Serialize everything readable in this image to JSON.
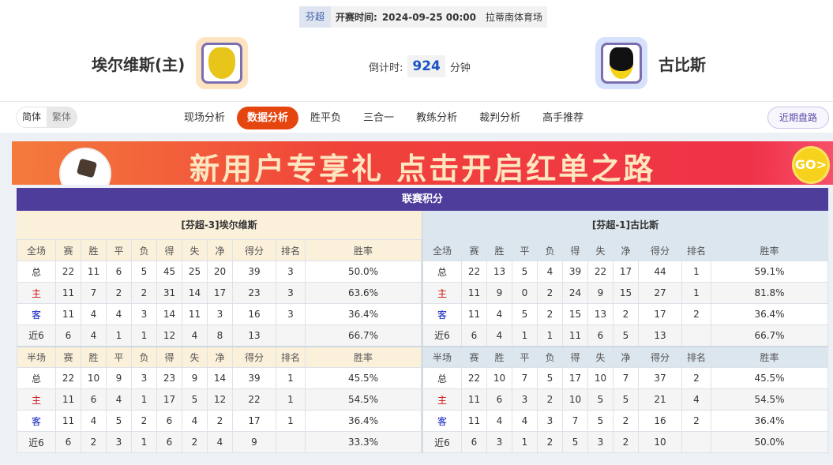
{
  "match": {
    "league": "芬超",
    "time_label": "开赛时间:",
    "time": "2024-09-25 00:00",
    "venue": "拉蒂南体育场",
    "home": "埃尔维斯(主)",
    "away": "古比斯",
    "countdown_label": "倒计时:",
    "countdown": "924",
    "countdown_unit": "分钟"
  },
  "nav": {
    "lang": [
      "简体",
      "繁体"
    ],
    "tabs": [
      "现场分析",
      "数据分析",
      "胜平负",
      "三合一",
      "教练分析",
      "裁判分析",
      "高手推荐"
    ],
    "active": "数据分析",
    "recent": "近期盘路"
  },
  "banner": {
    "text": "新用户专享礼 点击开启红单之路",
    "go": "GO>"
  },
  "standings": {
    "title": "联赛积分",
    "columns": [
      "赛",
      "胜",
      "平",
      "负",
      "得",
      "失",
      "净",
      "得分",
      "排名",
      "胜率"
    ],
    "teams": [
      {
        "name": "[芬超-3]埃尔维斯",
        "full": {
          "label": "全场",
          "rows": [
            [
              "总",
              "22",
              "11",
              "6",
              "5",
              "45",
              "25",
              "20",
              "39",
              "3",
              "50.0%"
            ],
            [
              "主",
              "11",
              "7",
              "2",
              "2",
              "31",
              "14",
              "17",
              "23",
              "3",
              "63.6%"
            ],
            [
              "客",
              "11",
              "4",
              "4",
              "3",
              "14",
              "11",
              "3",
              "16",
              "3",
              "36.4%"
            ],
            [
              "近6",
              "6",
              "4",
              "1",
              "1",
              "12",
              "4",
              "8",
              "13",
              "",
              "66.7%"
            ]
          ]
        },
        "half": {
          "label": "半场",
          "rows": [
            [
              "总",
              "22",
              "10",
              "9",
              "3",
              "23",
              "9",
              "14",
              "39",
              "1",
              "45.5%"
            ],
            [
              "主",
              "11",
              "6",
              "4",
              "1",
              "17",
              "5",
              "12",
              "22",
              "1",
              "54.5%"
            ],
            [
              "客",
              "11",
              "4",
              "5",
              "2",
              "6",
              "4",
              "2",
              "17",
              "1",
              "36.4%"
            ],
            [
              "近6",
              "6",
              "2",
              "3",
              "1",
              "6",
              "2",
              "4",
              "9",
              "",
              "33.3%"
            ]
          ]
        }
      },
      {
        "name": "[芬超-1]古比斯",
        "full": {
          "label": "全场",
          "rows": [
            [
              "总",
              "22",
              "13",
              "5",
              "4",
              "39",
              "22",
              "17",
              "44",
              "1",
              "59.1%"
            ],
            [
              "主",
              "11",
              "9",
              "0",
              "2",
              "24",
              "9",
              "15",
              "27",
              "1",
              "81.8%"
            ],
            [
              "客",
              "11",
              "4",
              "5",
              "2",
              "15",
              "13",
              "2",
              "17",
              "2",
              "36.4%"
            ],
            [
              "近6",
              "6",
              "4",
              "1",
              "1",
              "11",
              "6",
              "5",
              "13",
              "",
              "66.7%"
            ]
          ]
        },
        "half": {
          "label": "半场",
          "rows": [
            [
              "总",
              "22",
              "10",
              "7",
              "5",
              "17",
              "10",
              "7",
              "37",
              "2",
              "45.5%"
            ],
            [
              "主",
              "11",
              "6",
              "3",
              "2",
              "10",
              "5",
              "5",
              "21",
              "4",
              "54.5%"
            ],
            [
              "客",
              "11",
              "4",
              "4",
              "3",
              "7",
              "5",
              "2",
              "16",
              "2",
              "36.4%"
            ],
            [
              "近6",
              "6",
              "3",
              "1",
              "2",
              "5",
              "3",
              "2",
              "10",
              "",
              "50.0%"
            ]
          ]
        }
      }
    ]
  },
  "colors": {
    "accent": "#e5450f",
    "title_bar": "#4f3d9c",
    "home": "#d01010",
    "away": "#1020c0"
  }
}
